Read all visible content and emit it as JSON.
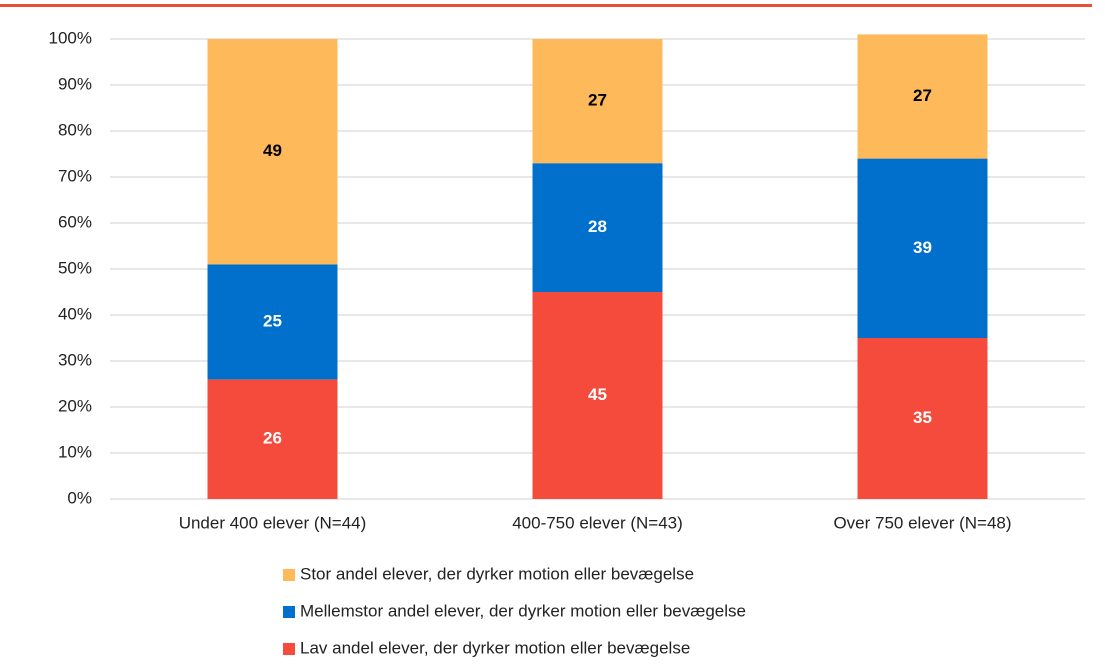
{
  "chart_data": {
    "type": "stacked_bar",
    "categories": [
      "Under 400 elever (N=44)",
      "400-750 elever (N=43)",
      "Over 750 elever (N=48)"
    ],
    "series": [
      {
        "name": "Lav andel elever, der dyrker motion eller bevægelse",
        "color": "#f44b3c",
        "values": [
          26,
          45,
          35
        ]
      },
      {
        "name": "Mellemstor andel elever, der dyrker motion eller bevægelse",
        "color": "#0070cc",
        "values": [
          25,
          28,
          39
        ]
      },
      {
        "name": "Stor andel elever, der dyrker motion eller bevægelse",
        "color": "#fdb95a",
        "values": [
          49,
          27,
          27
        ]
      }
    ],
    "ylim": [
      0,
      100
    ],
    "yticks": [
      {
        "value": 0,
        "label": "0%"
      },
      {
        "value": 10,
        "label": "10%"
      },
      {
        "value": 20,
        "label": "20%"
      },
      {
        "value": 30,
        "label": "30%"
      },
      {
        "value": 40,
        "label": "40%"
      },
      {
        "value": 50,
        "label": "50%"
      },
      {
        "value": 60,
        "label": "60%"
      },
      {
        "value": 70,
        "label": "70%"
      },
      {
        "value": 80,
        "label": "80%"
      },
      {
        "value": 90,
        "label": "90%"
      },
      {
        "value": 100,
        "label": "100%"
      }
    ],
    "grid": true,
    "legend": "bottom"
  }
}
